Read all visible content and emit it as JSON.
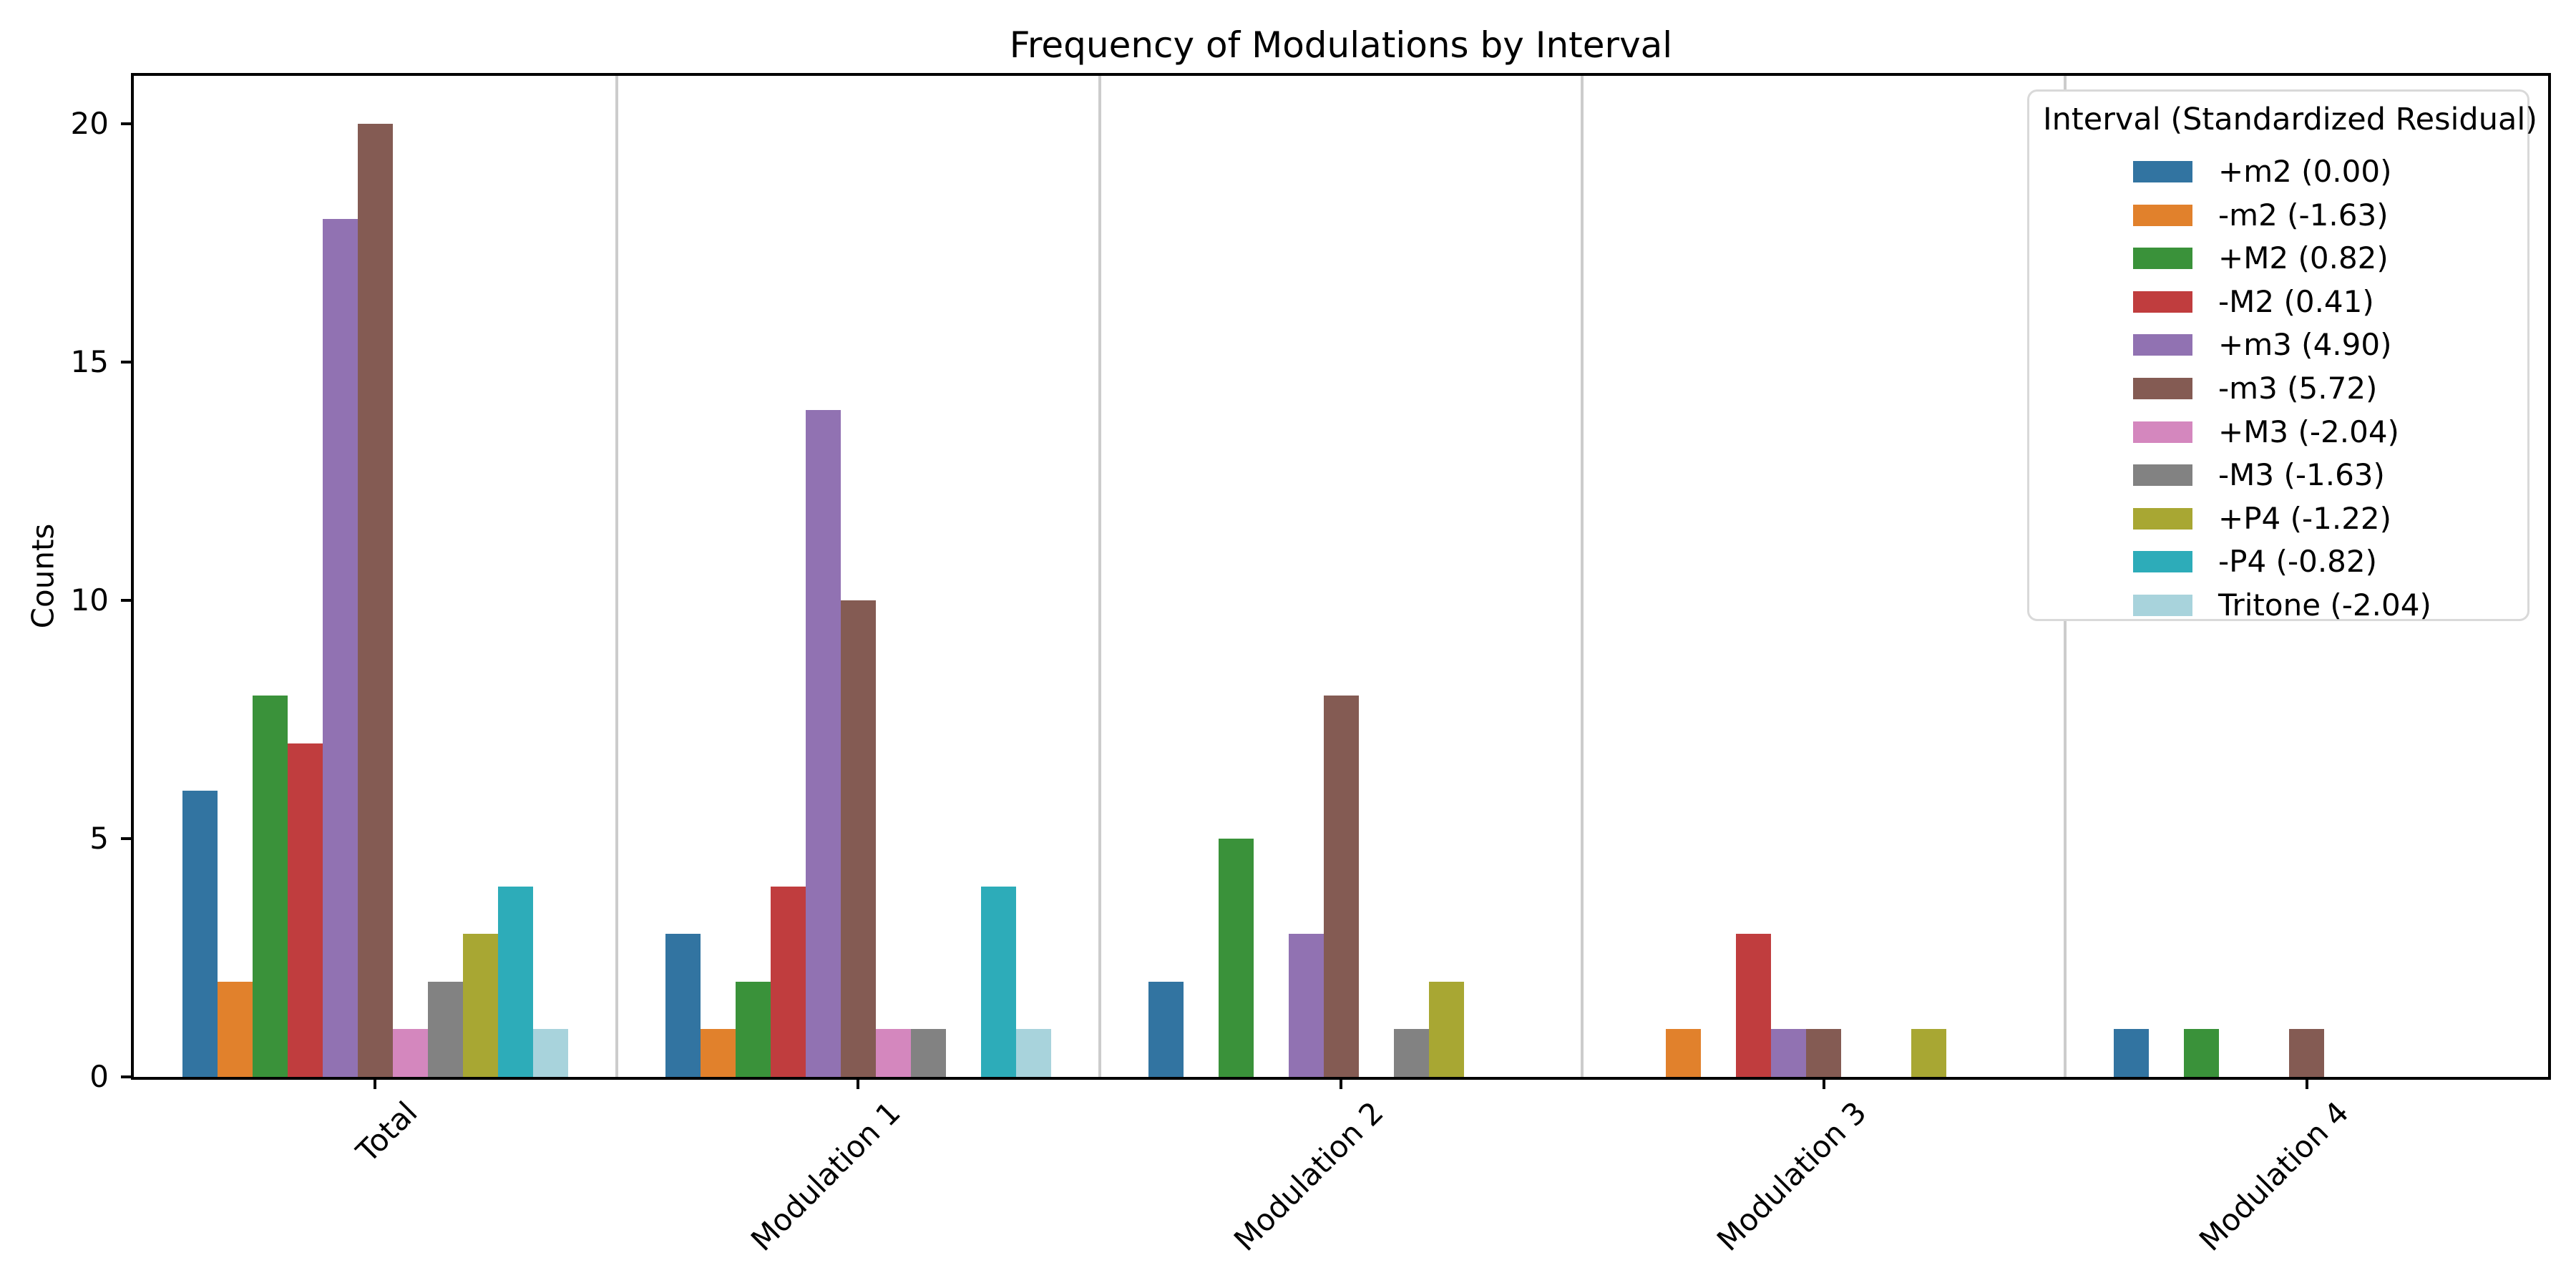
{
  "title": "Frequency of Modulations by Interval",
  "chart_data": {
    "type": "bar",
    "title": "Frequency of Modulations by Interval",
    "xlabel": "",
    "ylabel": "Counts",
    "categories": [
      "Total",
      "Modulation 1",
      "Modulation 2",
      "Modulation 3",
      "Modulation 4"
    ],
    "series": [
      {
        "name": "+m2",
        "residual": "0.00",
        "label": "+m2 (0.00)",
        "color": "#3274a1",
        "values": [
          6,
          3,
          2,
          0,
          1
        ]
      },
      {
        "name": "-m2",
        "residual": "-1.63",
        "label": "-m2 (-1.63)",
        "color": "#e1812c",
        "values": [
          2,
          1,
          0,
          1,
          0
        ]
      },
      {
        "name": "+M2",
        "residual": "0.82",
        "label": "+M2 (0.82)",
        "color": "#3a923a",
        "values": [
          8,
          2,
          5,
          0,
          1
        ]
      },
      {
        "name": "-M2",
        "residual": "0.41",
        "label": "-M2 (0.41)",
        "color": "#c03d3e",
        "values": [
          7,
          4,
          0,
          3,
          0
        ]
      },
      {
        "name": "+m3",
        "residual": "4.90",
        "label": "+m3 (4.90)",
        "color": "#9172b2",
        "values": [
          18,
          14,
          3,
          1,
          0
        ]
      },
      {
        "name": "-m3",
        "residual": "5.72",
        "label": "-m3 (5.72)",
        "color": "#845b53",
        "values": [
          20,
          10,
          8,
          1,
          1
        ]
      },
      {
        "name": "+M3",
        "residual": "-2.04",
        "label": "+M3 (-2.04)",
        "color": "#d487be",
        "values": [
          1,
          1,
          0,
          0,
          0
        ]
      },
      {
        "name": "-M3",
        "residual": "-1.63",
        "label": "-M3 (-1.63)",
        "color": "#828282",
        "values": [
          2,
          1,
          1,
          0,
          0
        ]
      },
      {
        "name": "+P4",
        "residual": "-1.22",
        "label": "+P4 (-1.22)",
        "color": "#a8a733",
        "values": [
          3,
          0,
          2,
          1,
          0
        ]
      },
      {
        "name": "-P4",
        "residual": "-0.82",
        "label": "-P4 (-0.82)",
        "color": "#2dacb9",
        "values": [
          4,
          4,
          0,
          0,
          0
        ]
      },
      {
        "name": "Tritone",
        "residual": "-2.04",
        "label": "Tritone (-2.04)",
        "color": "#a8d3dc",
        "values": [
          1,
          1,
          0,
          0,
          0
        ]
      }
    ],
    "yticks": [
      0,
      5,
      10,
      15,
      20
    ],
    "ylim": [
      0,
      21
    ],
    "legend_title": "Interval (Standardized Residual)",
    "legend_position": "upper right",
    "grid": false,
    "group_separators": true
  }
}
